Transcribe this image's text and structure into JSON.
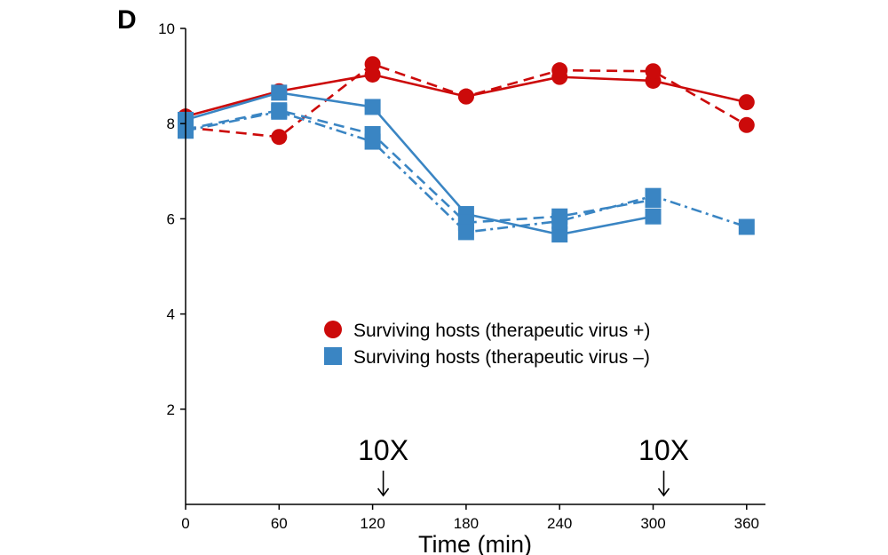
{
  "chart_data": {
    "type": "line",
    "panel_label": "D",
    "title": "",
    "xlabel": "Time (min)",
    "ylabel": "",
    "xlim": [
      0,
      370
    ],
    "ylim": [
      0,
      10
    ],
    "x_ticks": [
      0,
      60,
      120,
      180,
      240,
      300,
      360
    ],
    "x_tick_labels": [
      "0",
      "60",
      "120",
      "180",
      "240",
      "300",
      "360"
    ],
    "y_ticks": [
      2,
      4,
      6,
      8,
      10
    ],
    "y_tick_labels": [
      "2",
      "4",
      "6",
      "8",
      "10"
    ],
    "grid": false,
    "legend_position": "center-right",
    "legend": [
      {
        "label": "Surviving hosts (therapeutic virus +)",
        "marker": "circle",
        "color": "#cc0a0a"
      },
      {
        "label": "Surviving hosts (therapeutic virus –)",
        "marker": "square",
        "color": "#3a85c3"
      }
    ],
    "annotations": [
      {
        "text": "10X",
        "x": 120,
        "arrow": "down"
      },
      {
        "text": "10X",
        "x": 300,
        "arrow": "down"
      }
    ],
    "series": [
      {
        "group": "therapeutic virus +",
        "marker": "circle",
        "color": "#cc0a0a",
        "line": "solid",
        "x": [
          0,
          60,
          120,
          180,
          240,
          300,
          360
        ],
        "y": [
          8.15,
          8.68,
          9.03,
          8.57,
          8.98,
          8.9,
          8.45
        ]
      },
      {
        "group": "therapeutic virus +",
        "marker": "circle",
        "color": "#cc0a0a",
        "line": "dashed",
        "x": [
          0,
          60,
          120,
          180,
          240,
          300,
          360
        ],
        "y": [
          7.92,
          7.72,
          9.25,
          8.57,
          9.12,
          9.1,
          7.97
        ]
      },
      {
        "group": "therapeutic virus –",
        "marker": "square",
        "color": "#3a85c3",
        "line": "solid",
        "x": [
          0,
          60,
          120,
          180,
          240,
          300
        ],
        "y": [
          8.08,
          8.65,
          8.35,
          6.1,
          5.67,
          6.05
        ]
      },
      {
        "group": "therapeutic virus –",
        "marker": "square",
        "color": "#3a85c3",
        "line": "dashed",
        "x": [
          0,
          60,
          120,
          180,
          240,
          300
        ],
        "y": [
          7.88,
          8.28,
          7.78,
          5.92,
          6.05,
          6.4
        ]
      },
      {
        "group": "therapeutic virus –",
        "marker": "square",
        "color": "#3a85c3",
        "line": "dashdot",
        "x": [
          0,
          60,
          120,
          180,
          240,
          300,
          360
        ],
        "y": [
          7.85,
          8.25,
          7.62,
          5.72,
          5.95,
          6.48,
          5.83
        ]
      }
    ]
  }
}
